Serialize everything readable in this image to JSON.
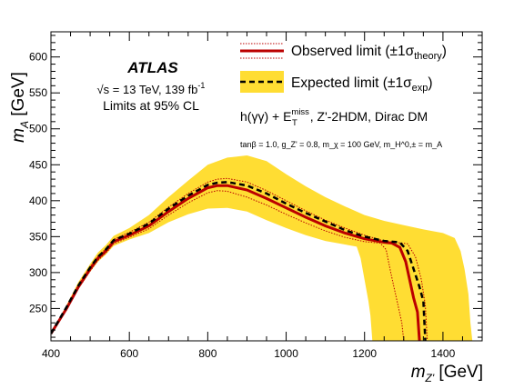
{
  "chart_data": {
    "type": "area",
    "experiment": "ATLAS",
    "energy_lumi": "√s = 13 TeV, 139 fb",
    "energy_lumi_sup": "-1",
    "limits_text": "Limits at 95% CL",
    "process": {
      "pre": "h(γγ) + E",
      "sup": "miss",
      "sub": "T",
      "post": ", Z'-2HDM, Dirac DM"
    },
    "params_text": "tanβ = 1.0, g_Z' = 0.8, m_χ = 100 GeV, m_H^0,± = m_A",
    "xlabel": {
      "main": "m",
      "sub": "Z'",
      "unit": " [GeV]"
    },
    "ylabel": {
      "main": "m",
      "sub": "A",
      "unit": " [GeV]"
    },
    "xlim": [
      400,
      1500
    ],
    "ylim": [
      205,
      635
    ],
    "xticks": [
      400,
      600,
      800,
      1000,
      1200,
      1400
    ],
    "yticks": [
      250,
      300,
      350,
      400,
      450,
      500,
      550,
      600
    ],
    "legend_position": "top-right",
    "colors": {
      "observed": "#bb0000",
      "expected": "#000000",
      "band": "#ffdd33"
    },
    "legend": [
      {
        "key": "observed",
        "main": "Observed limit (±1σ",
        "sub": "theory",
        "end": ")"
      },
      {
        "key": "expected",
        "main": "Expected limit (±1σ",
        "sub": "exp",
        "end": ")"
      }
    ],
    "series": [
      {
        "name": "Observed limit",
        "points": [
          [
            400,
            215
          ],
          [
            440,
            250
          ],
          [
            470,
            280
          ],
          [
            500,
            305
          ],
          [
            520,
            320
          ],
          [
            540,
            330
          ],
          [
            560,
            343
          ],
          [
            600,
            352
          ],
          [
            650,
            365
          ],
          [
            700,
            385
          ],
          [
            750,
            403
          ],
          [
            800,
            418
          ],
          [
            825,
            421
          ],
          [
            850,
            421
          ],
          [
            900,
            415
          ],
          [
            950,
            403
          ],
          [
            1000,
            390
          ],
          [
            1050,
            377
          ],
          [
            1100,
            365
          ],
          [
            1150,
            355
          ],
          [
            1200,
            347
          ],
          [
            1250,
            342
          ],
          [
            1270,
            341
          ],
          [
            1290,
            335
          ],
          [
            1305,
            315
          ],
          [
            1315,
            290
          ],
          [
            1325,
            265
          ],
          [
            1335,
            245
          ],
          [
            1340,
            205
          ]
        ]
      },
      {
        "name": "Observed +1σ theory",
        "points": [
          [
            400,
            215
          ],
          [
            440,
            252
          ],
          [
            470,
            283
          ],
          [
            500,
            308
          ],
          [
            520,
            323
          ],
          [
            540,
            333
          ],
          [
            560,
            346
          ],
          [
            600,
            356
          ],
          [
            650,
            370
          ],
          [
            700,
            391
          ],
          [
            750,
            410
          ],
          [
            800,
            426
          ],
          [
            825,
            430
          ],
          [
            850,
            431
          ],
          [
            900,
            426
          ],
          [
            950,
            414
          ],
          [
            1000,
            400
          ],
          [
            1050,
            386
          ],
          [
            1100,
            373
          ],
          [
            1150,
            362
          ],
          [
            1200,
            352
          ],
          [
            1250,
            344
          ],
          [
            1280,
            342
          ],
          [
            1310,
            340
          ],
          [
            1330,
            322
          ],
          [
            1345,
            290
          ],
          [
            1355,
            255
          ],
          [
            1360,
            205
          ]
        ]
      },
      {
        "name": "Observed -1σ theory",
        "points": [
          [
            400,
            215
          ],
          [
            440,
            248
          ],
          [
            470,
            278
          ],
          [
            500,
            302
          ],
          [
            520,
            317
          ],
          [
            540,
            327
          ],
          [
            560,
            340
          ],
          [
            600,
            349
          ],
          [
            650,
            361
          ],
          [
            700,
            380
          ],
          [
            750,
            397
          ],
          [
            800,
            411
          ],
          [
            825,
            414
          ],
          [
            850,
            413
          ],
          [
            900,
            405
          ],
          [
            950,
            394
          ],
          [
            1000,
            381
          ],
          [
            1050,
            369
          ],
          [
            1100,
            358
          ],
          [
            1150,
            349
          ],
          [
            1200,
            343
          ],
          [
            1240,
            341
          ],
          [
            1255,
            332
          ],
          [
            1265,
            305
          ],
          [
            1275,
            280
          ],
          [
            1285,
            255
          ],
          [
            1295,
            230
          ],
          [
            1300,
            205
          ]
        ]
      },
      {
        "name": "Expected limit",
        "points": [
          [
            400,
            215
          ],
          [
            440,
            252
          ],
          [
            470,
            282
          ],
          [
            500,
            307
          ],
          [
            520,
            322
          ],
          [
            540,
            332
          ],
          [
            560,
            345
          ],
          [
            600,
            354
          ],
          [
            650,
            368
          ],
          [
            700,
            389
          ],
          [
            750,
            407
          ],
          [
            800,
            422
          ],
          [
            825,
            425
          ],
          [
            850,
            426
          ],
          [
            900,
            421
          ],
          [
            950,
            410
          ],
          [
            1000,
            396
          ],
          [
            1050,
            383
          ],
          [
            1100,
            371
          ],
          [
            1150,
            359
          ],
          [
            1200,
            350
          ],
          [
            1250,
            344
          ],
          [
            1290,
            342
          ],
          [
            1310,
            330
          ],
          [
            1325,
            305
          ],
          [
            1340,
            280
          ],
          [
            1350,
            260
          ],
          [
            1355,
            205
          ]
        ]
      },
      {
        "name": "Expected ±1σ upper",
        "points": [
          [
            400,
            215
          ],
          [
            440,
            255
          ],
          [
            470,
            287
          ],
          [
            500,
            312
          ],
          [
            520,
            328
          ],
          [
            540,
            338
          ],
          [
            560,
            351
          ],
          [
            600,
            362
          ],
          [
            650,
            380
          ],
          [
            700,
            405
          ],
          [
            750,
            428
          ],
          [
            800,
            450
          ],
          [
            850,
            460
          ],
          [
            900,
            463
          ],
          [
            950,
            455
          ],
          [
            1000,
            437
          ],
          [
            1050,
            420
          ],
          [
            1100,
            405
          ],
          [
            1150,
            392
          ],
          [
            1200,
            380
          ],
          [
            1250,
            372
          ],
          [
            1300,
            366
          ],
          [
            1350,
            360
          ],
          [
            1400,
            355
          ],
          [
            1430,
            348
          ],
          [
            1445,
            330
          ],
          [
            1455,
            305
          ],
          [
            1465,
            270
          ],
          [
            1470,
            230
          ],
          [
            1475,
            205
          ]
        ]
      },
      {
        "name": "Expected ±1σ lower",
        "points": [
          [
            400,
            215
          ],
          [
            440,
            249
          ],
          [
            470,
            277
          ],
          [
            500,
            301
          ],
          [
            520,
            315
          ],
          [
            540,
            325
          ],
          [
            560,
            337
          ],
          [
            600,
            346
          ],
          [
            650,
            355
          ],
          [
            700,
            370
          ],
          [
            750,
            381
          ],
          [
            800,
            389
          ],
          [
            850,
            390
          ],
          [
            900,
            385
          ],
          [
            950,
            373
          ],
          [
            1000,
            362
          ],
          [
            1050,
            352
          ],
          [
            1100,
            344
          ],
          [
            1150,
            339
          ],
          [
            1180,
            336
          ],
          [
            1190,
            320
          ],
          [
            1200,
            290
          ],
          [
            1210,
            260
          ],
          [
            1215,
            240
          ],
          [
            1220,
            205
          ]
        ]
      }
    ]
  }
}
